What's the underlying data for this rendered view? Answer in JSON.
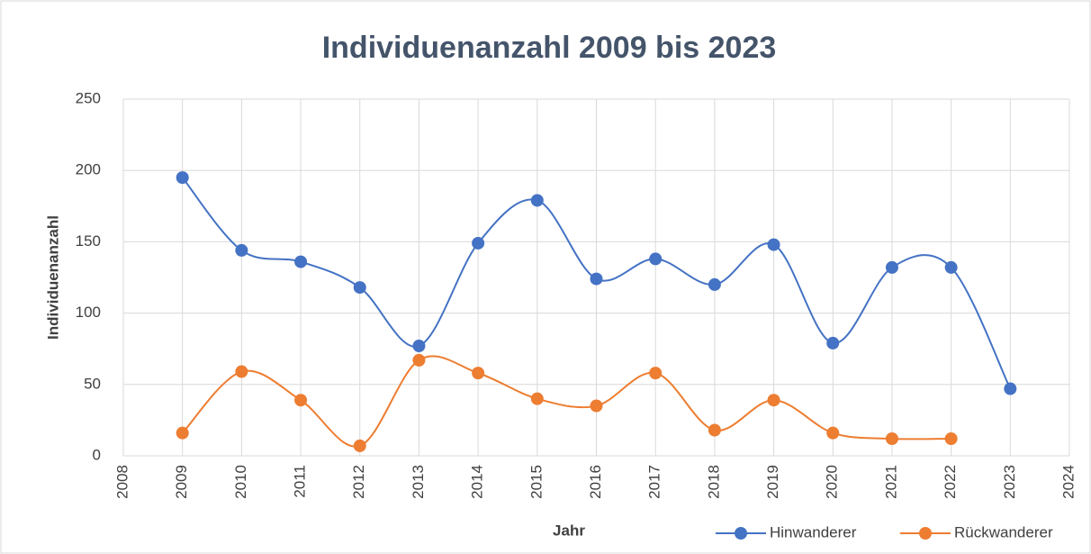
{
  "chart_data": {
    "type": "line",
    "smooth": true,
    "title": "Individuenanzahl 2009 bis 2023",
    "x_label": "Jahr",
    "y_label": "Individuenanzahl",
    "x": [
      2009,
      2010,
      2011,
      2012,
      2013,
      2014,
      2015,
      2016,
      2017,
      2018,
      2019,
      2020,
      2021,
      2022,
      2023
    ],
    "series": [
      {
        "name": "Hinwanderer",
        "color": "#4472c4",
        "values": [
          195,
          144,
          136,
          118,
          77,
          149,
          179,
          124,
          138,
          120,
          148,
          79,
          132,
          132,
          47
        ]
      },
      {
        "name": "Rückwanderer",
        "color": "#ed7d31",
        "values": [
          16,
          59,
          39,
          7,
          67,
          58,
          40,
          35,
          58,
          18,
          39,
          16,
          12,
          12,
          null
        ]
      }
    ],
    "xlim": [
      2008,
      2024
    ],
    "xticks": [
      2008,
      2009,
      2010,
      2011,
      2012,
      2013,
      2014,
      2015,
      2016,
      2017,
      2018,
      2019,
      2020,
      2021,
      2022,
      2023,
      2024
    ],
    "ylim": [
      0,
      250
    ],
    "yticks": [
      0,
      50,
      100,
      150,
      200,
      250
    ],
    "grid": true,
    "legend": "bottom-right"
  }
}
